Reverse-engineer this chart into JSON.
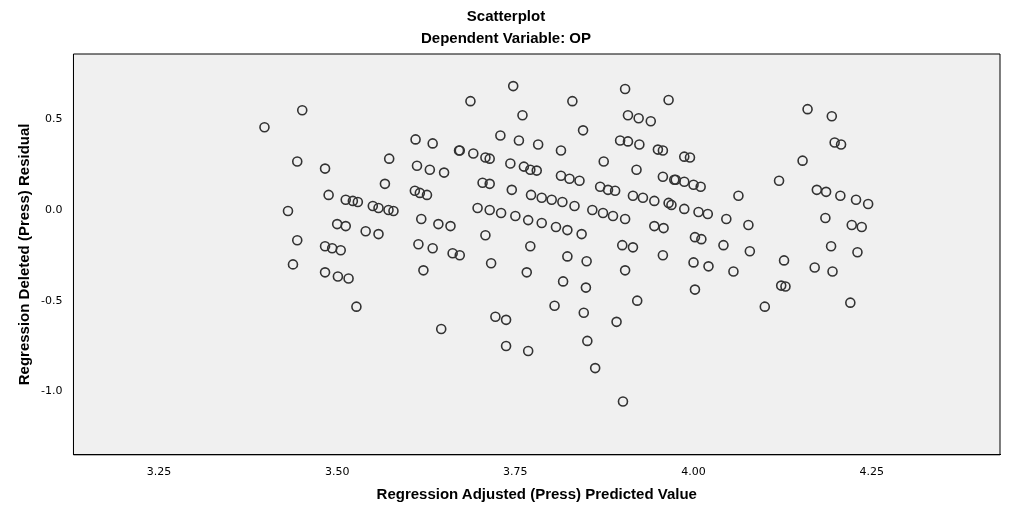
{
  "chart_data": {
    "type": "scatter",
    "title": "Scatterplot",
    "subtitle": "Dependent Variable: OP",
    "xlabel": "Regression Adjusted (Press) Predicted Value",
    "ylabel": "Regression Deleted (Press) Residual",
    "xlim": [
      3.13,
      4.43
    ],
    "ylim": [
      -1.35,
      0.86
    ],
    "xticks": [
      {
        "value": 3.25,
        "label": "3.25"
      },
      {
        "value": 3.5,
        "label": "3.50"
      },
      {
        "value": 3.75,
        "label": "3.75"
      },
      {
        "value": 4,
        "label": "4.00"
      },
      {
        "value": 4.25,
        "label": "4.25"
      }
    ],
    "yticks": [
      {
        "value": -1,
        "label": "-1.0"
      },
      {
        "value": -0.5,
        "label": "-0.5"
      },
      {
        "value": 0,
        "label": "0.0"
      },
      0.5
    ],
    "grid": false,
    "marker": "circle",
    "series": [
      {
        "color": "#333333",
        "x": [
          3.398,
          3.451,
          3.444,
          3.483,
          3.573,
          3.567,
          3.61,
          3.634,
          3.671,
          3.612,
          3.63,
          3.65,
          3.488,
          3.512,
          3.522,
          3.529,
          3.55,
          3.558,
          3.572,
          3.579,
          3.609,
          3.616,
          3.626,
          3.431,
          3.5,
          3.512,
          3.54,
          3.558,
          3.618,
          3.642,
          3.659,
          3.444,
          3.483,
          3.493,
          3.505,
          3.614,
          3.634,
          3.662,
          3.672,
          3.438,
          3.621,
          3.483,
          3.501,
          3.516,
          3.527,
          3.646,
          3.747,
          3.687,
          3.83,
          3.904,
          3.965,
          3.76,
          3.908,
          3.923,
          3.94,
          3.845,
          3.729,
          3.755,
          3.782,
          3.814,
          3.897,
          3.908,
          3.924,
          3.95,
          3.957,
          3.672,
          3.691,
          3.708,
          3.714,
          3.743,
          3.762,
          3.771,
          3.78,
          3.874,
          3.92,
          3.814,
          3.826,
          3.84,
          3.957,
          3.973,
          3.704,
          3.714,
          3.745,
          3.772,
          3.787,
          3.801,
          3.816,
          3.833,
          3.869,
          3.88,
          3.89,
          3.915,
          3.929,
          3.945,
          3.965,
          3.697,
          3.714,
          3.73,
          3.75,
          3.768,
          3.787,
          3.807,
          3.823,
          3.843,
          3.858,
          3.873,
          3.887,
          3.904,
          3.945,
          3.958,
          3.708,
          3.771,
          3.9,
          3.915,
          3.957,
          3.716,
          3.823,
          3.85,
          3.904,
          3.766,
          3.817,
          3.849,
          3.805,
          3.846,
          3.921,
          3.892,
          3.722,
          3.737,
          3.737,
          3.768,
          3.851,
          3.862,
          3.901,
          4.16,
          4.194,
          4.198,
          4.207,
          4.153,
          4.12,
          4.173,
          4.186,
          4.206,
          4.228,
          4.245,
          3.987,
          3.995,
          3.975,
          3.987,
          4.0,
          4.01,
          4.063,
          3.969,
          3.987,
          4.007,
          4.02,
          4.046,
          4.077,
          4.185,
          4.222,
          4.236,
          4.002,
          4.011,
          4.042,
          4.079,
          4.193,
          4.23,
          4.0,
          4.021,
          4.056,
          4.127,
          4.17,
          4.195,
          4.002,
          4.123,
          4.129,
          4.1,
          4.22
        ],
        "values": [
          0.456,
          0.55,
          0.267,
          0.228,
          0.283,
          0.144,
          0.389,
          0.367,
          0.328,
          0.244,
          0.222,
          0.206,
          0.083,
          0.056,
          0.05,
          0.044,
          0.022,
          0.011,
          0,
          -0.006,
          0.106,
          0.094,
          0.083,
          -0.006,
          -0.078,
          -0.089,
          -0.117,
          -0.133,
          -0.05,
          -0.078,
          -0.089,
          -0.167,
          -0.2,
          -0.211,
          -0.222,
          -0.189,
          -0.211,
          -0.239,
          -0.25,
          -0.3,
          -0.333,
          -0.344,
          -0.367,
          -0.378,
          -0.533,
          -0.656,
          0.683,
          0.6,
          0.6,
          0.667,
          0.606,
          0.522,
          0.522,
          0.506,
          0.489,
          0.439,
          0.411,
          0.383,
          0.361,
          0.328,
          0.383,
          0.378,
          0.361,
          0.333,
          0.328,
          0.328,
          0.311,
          0.289,
          0.283,
          0.256,
          0.239,
          0.222,
          0.217,
          0.267,
          0.222,
          0.189,
          0.172,
          0.161,
          0.183,
          0.167,
          0.15,
          0.144,
          0.111,
          0.083,
          0.067,
          0.056,
          0.044,
          0.022,
          0.128,
          0.111,
          0.106,
          0.078,
          0.067,
          0.05,
          0.039,
          0.011,
          0,
          -0.017,
          -0.033,
          -0.056,
          -0.072,
          -0.094,
          -0.111,
          -0.133,
          0,
          -0.017,
          -0.033,
          -0.05,
          -0.089,
          -0.1,
          -0.139,
          -0.2,
          -0.194,
          -0.206,
          -0.25,
          -0.294,
          -0.256,
          -0.283,
          -0.333,
          -0.344,
          -0.394,
          -0.428,
          -0.528,
          -0.567,
          -0.5,
          -0.617,
          -0.589,
          -0.606,
          -0.75,
          -0.778,
          -0.722,
          -0.872,
          -1.056,
          0.556,
          0.517,
          0.372,
          0.361,
          0.272,
          0.161,
          0.111,
          0.1,
          0.078,
          0.056,
          0.033,
          0.294,
          0.289,
          0.167,
          0.156,
          0.139,
          0.128,
          0.078,
          0.028,
          0.006,
          -0.011,
          -0.022,
          -0.05,
          -0.083,
          -0.044,
          -0.083,
          -0.094,
          -0.15,
          -0.161,
          -0.194,
          -0.228,
          -0.2,
          -0.233,
          -0.289,
          -0.311,
          -0.339,
          -0.278,
          -0.317,
          -0.339,
          -0.439,
          -0.417,
          -0.422,
          -0.533,
          -0.511
        ]
      }
    ]
  }
}
